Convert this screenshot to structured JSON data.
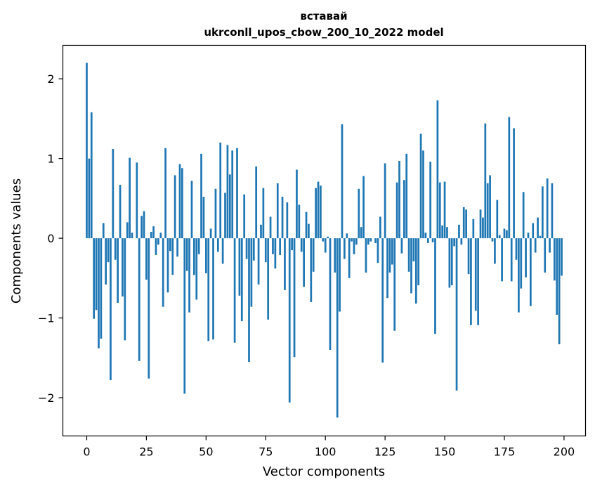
{
  "chart_data": {
    "type": "bar",
    "title": "вставай",
    "subtitle": "ukrconll_upos_cbow_200_10_2022 model",
    "xlabel": "Vector components",
    "ylabel": "Components values",
    "xlim": [
      -10,
      209
    ],
    "ylim": [
      -2.48,
      2.42
    ],
    "xticks": [
      0,
      25,
      50,
      75,
      100,
      125,
      150,
      175,
      200
    ],
    "yticks": [
      2,
      1,
      0,
      -1,
      -2
    ],
    "bar_color": "#1f77b4",
    "grid": false,
    "x": [
      0,
      1,
      2,
      3,
      4,
      5,
      6,
      7,
      8,
      9,
      10,
      11,
      12,
      13,
      14,
      15,
      16,
      17,
      18,
      19,
      20,
      21,
      22,
      23,
      24,
      25,
      26,
      27,
      28,
      29,
      30,
      31,
      32,
      33,
      34,
      35,
      36,
      37,
      38,
      39,
      40,
      41,
      42,
      43,
      44,
      45,
      46,
      47,
      48,
      49,
      50,
      51,
      52,
      53,
      54,
      55,
      56,
      57,
      58,
      59,
      60,
      61,
      62,
      63,
      64,
      65,
      66,
      67,
      68,
      69,
      70,
      71,
      72,
      73,
      74,
      75,
      76,
      77,
      78,
      79,
      80,
      81,
      82,
      83,
      84,
      85,
      86,
      87,
      88,
      89,
      90,
      91,
      92,
      93,
      94,
      95,
      96,
      97,
      98,
      99,
      100,
      101,
      102,
      103,
      104,
      105,
      106,
      107,
      108,
      109,
      110,
      111,
      112,
      113,
      114,
      115,
      116,
      117,
      118,
      119,
      120,
      121,
      122,
      123,
      124,
      125,
      126,
      127,
      128,
      129,
      130,
      131,
      132,
      133,
      134,
      135,
      136,
      137,
      138,
      139,
      140,
      141,
      142,
      143,
      144,
      145,
      146,
      147,
      148,
      149,
      150,
      151,
      152,
      153,
      154,
      155,
      156,
      157,
      158,
      159,
      160,
      161,
      162,
      163,
      164,
      165,
      166,
      167,
      168,
      169,
      170,
      171,
      172,
      173,
      174,
      175,
      176,
      177,
      178,
      179,
      180,
      181,
      182,
      183,
      184,
      185,
      186,
      187,
      188,
      189,
      190,
      191,
      192,
      193,
      194,
      195,
      196,
      197,
      198,
      199
    ],
    "values": [
      2.2,
      1.0,
      1.58,
      -1.01,
      -0.9,
      -1.38,
      -1.26,
      0.19,
      -0.58,
      -0.3,
      -1.78,
      1.12,
      -0.27,
      -0.81,
      0.67,
      -0.73,
      -1.28,
      0.2,
      1.01,
      0.07,
      0.0,
      0.95,
      -1.54,
      0.28,
      0.34,
      -0.52,
      -1.76,
      0.08,
      0.15,
      -0.21,
      -0.08,
      0.07,
      -0.86,
      1.13,
      -0.68,
      -0.16,
      -0.46,
      0.79,
      -0.23,
      0.93,
      0.88,
      -1.95,
      -0.41,
      -0.93,
      0.72,
      -0.46,
      -0.77,
      -0.2,
      1.06,
      0.52,
      -0.44,
      -1.29,
      0.12,
      -1.27,
      0.62,
      -0.17,
      1.2,
      -0.32,
      0.57,
      1.17,
      0.8,
      1.1,
      -1.31,
      1.13,
      -0.72,
      -1.04,
      0.55,
      -0.26,
      -1.55,
      -0.86,
      -0.28,
      0.9,
      -0.58,
      0.17,
      0.63,
      -0.3,
      -1.02,
      0.27,
      -0.2,
      -0.38,
      0.69,
      -0.21,
      0.52,
      -0.65,
      0.45,
      -2.06,
      -0.15,
      -1.49,
      0.86,
      0.42,
      -0.17,
      -0.61,
      0.33,
      0.18,
      -0.8,
      -0.42,
      0.63,
      0.71,
      0.66,
      -0.04,
      -0.18,
      0.02,
      -1.4,
      0.0,
      -0.43,
      -2.25,
      -0.92,
      1.43,
      -0.26,
      0.06,
      -0.5,
      -0.04,
      -0.2,
      -0.08,
      0.62,
      0.14,
      0.78,
      -0.43,
      -0.08,
      -0.04,
      0.0,
      -0.06,
      -0.31,
      0.27,
      -1.56,
      0.94,
      -0.75,
      -0.43,
      -0.33,
      -1.16,
      0.7,
      0.97,
      -0.19,
      0.73,
      1.06,
      -0.42,
      -0.69,
      -0.29,
      -0.82,
      -0.59,
      1.31,
      1.1,
      0.07,
      -0.06,
      0.96,
      -0.05,
      -1.2,
      1.73,
      0.7,
      0.16,
      0.71,
      0.14,
      -0.62,
      -0.59,
      -0.1,
      -1.91,
      0.17,
      -0.08,
      0.39,
      0.36,
      -0.45,
      -1.09,
      0.24,
      -0.91,
      -1.09,
      0.36,
      0.26,
      1.44,
      0.69,
      0.79,
      -0.04,
      -0.32,
      0.48,
      0.04,
      -0.54,
      0.12,
      0.1,
      1.52,
      -0.54,
      1.38,
      -0.27,
      -0.93,
      -0.63,
      0.58,
      -0.49,
      0.07,
      -0.85,
      0.19,
      -0.18,
      0.26,
      0.03,
      0.65,
      -0.43,
      0.75,
      -0.18,
      0.69,
      -0.53,
      -0.96,
      -1.33,
      -0.47
    ]
  }
}
